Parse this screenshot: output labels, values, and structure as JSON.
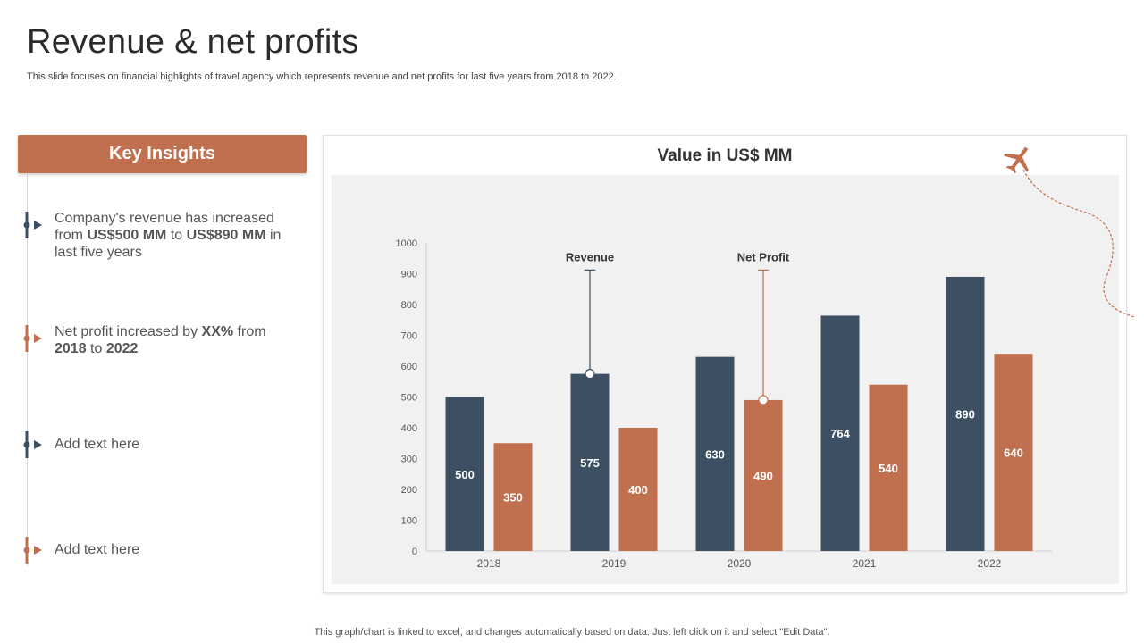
{
  "page": {
    "title": "Revenue & net profits",
    "subtitle": "This slide focuses on financial highlights of travel agency which represents revenue and net profits for last five years from 2018 to 2022.",
    "footer": "This graph/chart is linked to excel,  and changes automatically based on data. Just left click on it and select \"Edit Data\"."
  },
  "insights": {
    "header": "Key Insights",
    "items": [
      {
        "color": "#3d5063",
        "parts": [
          {
            "t": "Company's revenue has increased from ",
            "b": false
          },
          {
            "t": "US$500 MM",
            "b": true
          },
          {
            "t": " to ",
            "b": false
          },
          {
            "t": "US$890 MM",
            "b": true
          },
          {
            "t": " in last five years",
            "b": false
          }
        ]
      },
      {
        "color": "#c0704e",
        "parts": [
          {
            "t": "Net profit increased by ",
            "b": false
          },
          {
            "t": "XX%",
            "b": true
          },
          {
            "t": " from ",
            "b": false
          },
          {
            "t": "2018",
            "b": true
          },
          {
            "t": " to ",
            "b": false
          },
          {
            "t": "2022",
            "b": true
          }
        ]
      },
      {
        "color": "#3d5063",
        "parts": [
          {
            "t": "Add text here",
            "b": false
          }
        ]
      },
      {
        "color": "#c0704e",
        "parts": [
          {
            "t": "Add text here",
            "b": false
          }
        ]
      }
    ]
  },
  "chart_data": {
    "type": "bar",
    "title": "Value in US$ MM",
    "categories": [
      "2018",
      "2019",
      "2020",
      "2021",
      "2022"
    ],
    "series": [
      {
        "name": "Revenue",
        "color": "#3d5063",
        "values": [
          500,
          575,
          630,
          764,
          890
        ]
      },
      {
        "name": "Net Profit",
        "color": "#c0704e",
        "values": [
          350,
          400,
          490,
          540,
          640
        ]
      }
    ],
    "ylim": [
      0,
      1000
    ],
    "yticks": [
      0,
      100,
      200,
      300,
      400,
      500,
      600,
      700,
      800,
      900,
      1000
    ],
    "callouts": [
      {
        "label": "Revenue",
        "series": 0,
        "category": 1
      },
      {
        "label": "Net Profit",
        "series": 1,
        "category": 2
      }
    ],
    "xlabel": "",
    "ylabel": ""
  },
  "decor": {
    "plane_icon": "airplane-icon",
    "accent": "#c0704e",
    "dark": "#3d5063"
  }
}
